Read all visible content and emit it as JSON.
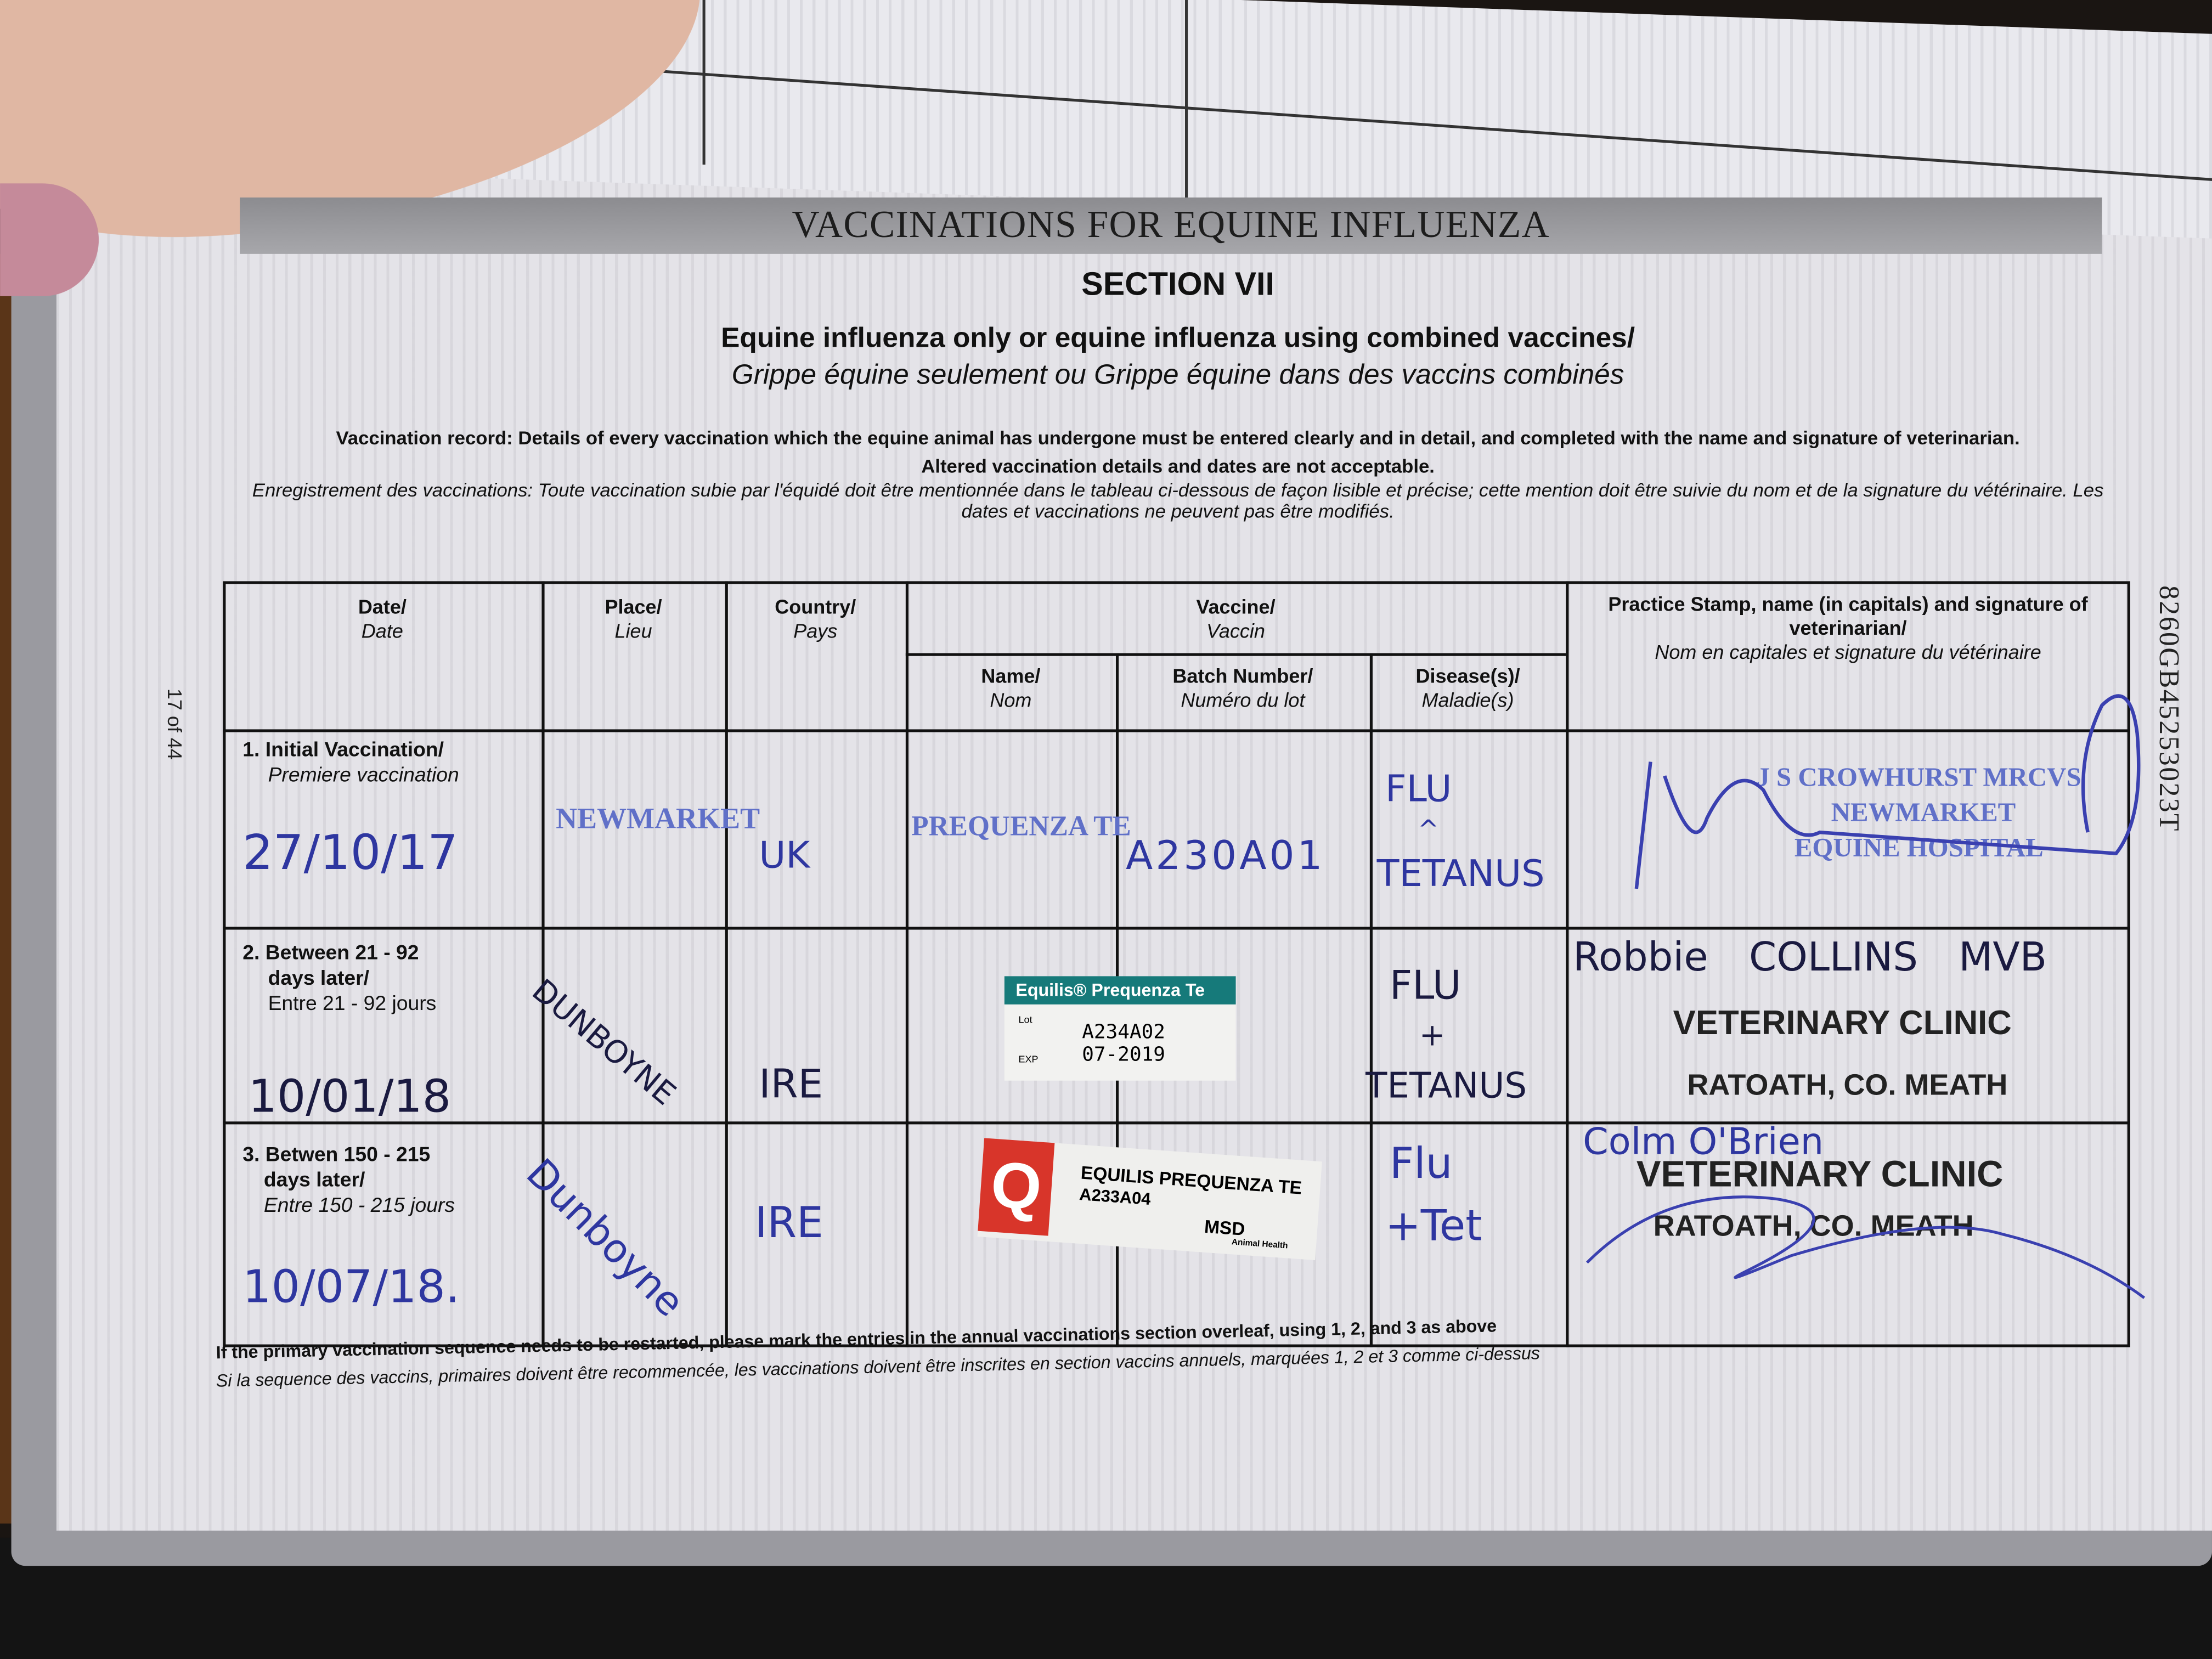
{
  "page": {
    "banner_title": "VACCINATIONS FOR EQUINE INFLUENZA",
    "section": "SECTION VII",
    "subtitle_en": "Equine influenza only or equine influenza using combined vaccines/",
    "subtitle_fr": "Grippe équine seulement ou Grippe équine dans des vaccins combinés",
    "note_en_1": "Vaccination record: Details of every vaccination which the equine animal has undergone must be entered clearly and in detail, and completed with the name and signature of veterinarian.",
    "note_en_2": "Altered vaccination details and dates are not acceptable.",
    "note_fr": "Enregistrement des vaccinations: Toute vaccination subie par l'équidé doit être mentionnée dans le tableau ci-dessous de façon lisible et précise; cette mention doit être suivie du nom et de la signature du vétérinaire. Les dates et vaccinations ne peuvent pas être modifiés.",
    "page_number": "17 of 44",
    "passport_id": "8260GB45253023T",
    "footer_en": "If the primary vaccination sequence needs to be restarted, please mark the entries in the annual vaccinations section overleaf, using 1, 2, and 3 as above",
    "footer_fr": "Si la sequence des vaccins, primaires doivent être recommencée, les vaccinations doivent être inscrites en section vaccins annuels, marquées 1, 2 et 3 comme ci-dessus"
  },
  "table": {
    "headers": {
      "date": {
        "en": "Date/",
        "fr": "Date"
      },
      "place": {
        "en": "Place/",
        "fr": "Lieu"
      },
      "country": {
        "en": "Country/",
        "fr": "Pays"
      },
      "vaccine": {
        "en": "Vaccine/",
        "fr": "Vaccin"
      },
      "name": {
        "en": "Name/",
        "fr": "Nom"
      },
      "batch": {
        "en": "Batch Number/",
        "fr": "Numéro du lot"
      },
      "disease": {
        "en": "Disease(s)/",
        "fr": "Maladie(s)"
      },
      "vet": {
        "en": "Practice Stamp, name (in capitals) and signature of veterinarian/",
        "fr": "Nom en capitales et signature du vétérinaire"
      }
    },
    "rows": [
      {
        "label_en": "1. Initial Vaccination/",
        "label_fr": "Premiere vaccination",
        "date": "27/10/17",
        "place": "NEWMARKET",
        "country": "UK",
        "name": "PREQUENZA TE",
        "batch": "A230A01",
        "disease_1": "FLU",
        "disease_2": "^",
        "disease_3": "TETANUS",
        "stamp_1": "J S CROWHURST MRCVS",
        "stamp_2": "NEWMARKET",
        "stamp_3": "EQUINE HOSPITAL"
      },
      {
        "label_en": "2. Between 21 - 92",
        "label_en_2": "days later/",
        "label_fr": "Entre 21 - 92 jours",
        "date": "10/01/18",
        "place": "DUNBOYNE",
        "country": "IRE",
        "disease_1": "FLU",
        "disease_2": "+",
        "disease_3": "TETANUS",
        "vet_name": "Robbie COLLINS MVB",
        "stamp_1": "VETERINARY CLINIC",
        "stamp_2": "RATOATH, CO. MEATH",
        "sticker": {
          "brand": "Equilis® Prequenza Te",
          "lot_label": "Lot",
          "exp_label": "EXP",
          "lot": "A234A02",
          "exp": "07-2019"
        }
      },
      {
        "label_en": "3. Betwen 150 - 215",
        "label_en_2": "days later/",
        "label_fr": "Entre 150 - 215 jours",
        "date": "10/07/18.",
        "place": "Dunboyne",
        "country": "IRE",
        "disease_1": "Flu",
        "disease_2": "+Tet",
        "vet_name": "Colm O'Brien",
        "stamp_1": "VETERINARY CLINIC",
        "stamp_2": "RATOATH, CO. MEATH",
        "sticker": {
          "logo": "Q",
          "product": "EQUILIS PREQUENZA TE",
          "batch": "A233A04",
          "maker": "MSD",
          "maker_sub": "Animal Health"
        }
      }
    ]
  },
  "colors": {
    "ink": "#2e36a0",
    "stamp": "#6070c8",
    "sticker_teal": "#167a7a",
    "sticker_red": "#d8352a",
    "banner": "#9a9a9e"
  }
}
